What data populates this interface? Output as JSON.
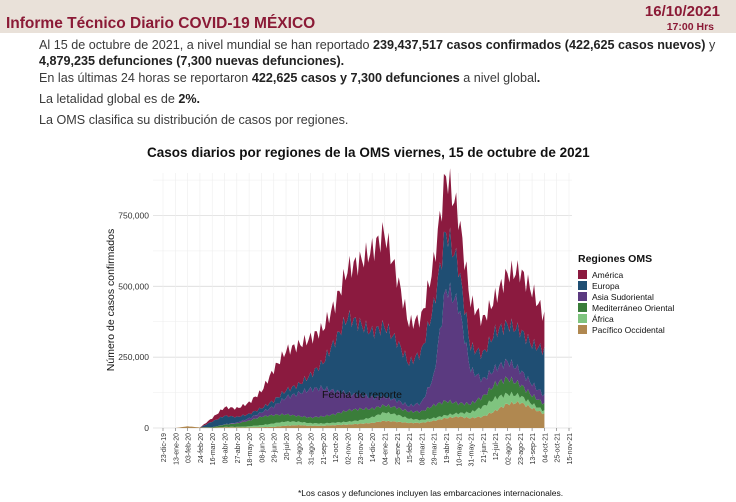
{
  "header": {
    "title": "Informe Técnico Diario COVID-19 MÉXICO",
    "date": "16/10/2021",
    "time": "17:00 Hrs"
  },
  "paragraphs": {
    "p1_a": "Al 15 de octubre de 2021, a nivel mundial se han reportado ",
    "p1_b": "239,437,517 casos confirmados (422,625 casos nuevos)",
    "p1_c": " y ",
    "p1_d": "4,879,235 defunciones (7,300 nuevas defunciones).",
    "p2_a": "En las últimas 24 horas se reportaron ",
    "p2_b": "422,625 casos y 7,300 defunciones",
    "p2_c": " a nivel global",
    "p2_d": ".",
    "p3_a": "La letalidad global es de ",
    "p3_b": "2%.",
    "p4": "La OMS clasifica su distribución de casos por regiones."
  },
  "footnote": "*Los casos y defunciones incluyen las embarcaciones internacionales.",
  "colors": {
    "america": "#8b1a3f",
    "europa": "#1f4e73",
    "asia": "#5b3a80",
    "mediterraneo": "#3a7d3a",
    "africa": "#7fc47f",
    "pacifico": "#b08850",
    "header_bg": "#e9e1d9",
    "brand": "#8b1a36"
  },
  "chart_data": {
    "type": "area",
    "title": "Casos diarios por regiones de la OMS viernes, 15 de octubre de 2021",
    "xlabel": "Fecha de reporte",
    "ylabel": "Número de casos confirmados",
    "ylim": [
      0,
      900000
    ],
    "yticks": [
      0,
      250000,
      500000,
      750000
    ],
    "ytick_labels": [
      "0",
      "250,000",
      "500,000",
      "750,000"
    ],
    "xticks": [
      "23-dic-19",
      "13-ene-20",
      "03-feb-20",
      "24-feb-20",
      "16-mar-20",
      "06-abr-20",
      "27-abr-20",
      "18-may-20",
      "08-jun-20",
      "29-jun-20",
      "20-jul-20",
      "10-ago-20",
      "31-ago-20",
      "21-sep-20",
      "12-oct-20",
      "02-nov-20",
      "23-nov-20",
      "14-dic-20",
      "04-ene-21",
      "25-ene-21",
      "15-feb-21",
      "08-mar-21",
      "29-mar-21",
      "19-abr-21",
      "10-may-21",
      "31-may-21",
      "21-jun-21",
      "12-jul-21",
      "02-ago-21",
      "23-ago-21",
      "13-sep-21",
      "04-oct-21",
      "25-oct-21",
      "15-nov-21"
    ],
    "grid": true,
    "legend_title": "Regiones OMS",
    "legend_position": "right",
    "x": [
      "23-dic-19",
      "13-ene-20",
      "03-feb-20",
      "24-feb-20",
      "16-mar-20",
      "06-abr-20",
      "27-abr-20",
      "18-may-20",
      "08-jun-20",
      "29-jun-20",
      "20-jul-20",
      "10-ago-20",
      "31-ago-20",
      "21-sep-20",
      "12-oct-20",
      "02-nov-20",
      "23-nov-20",
      "14-dic-20",
      "04-ene-21",
      "25-ene-21",
      "15-feb-21",
      "08-mar-21",
      "29-mar-21",
      "19-abr-21",
      "10-may-21",
      "31-may-21",
      "21-jun-21",
      "12-jul-21",
      "02-ago-21",
      "23-ago-21",
      "13-sep-21",
      "04-oct-21"
    ],
    "series": [
      {
        "name": "América",
        "values": [
          0,
          0,
          0,
          0,
          12000,
          30000,
          30000,
          40000,
          60000,
          110000,
          140000,
          140000,
          130000,
          120000,
          130000,
          170000,
          220000,
          290000,
          330000,
          230000,
          140000,
          120000,
          150000,
          200000,
          180000,
          160000,
          120000,
          120000,
          180000,
          210000,
          190000,
          120000
        ]
      },
      {
        "name": "Europa",
        "values": [
          0,
          0,
          0,
          0,
          20000,
          30000,
          20000,
          15000,
          15000,
          20000,
          25000,
          30000,
          50000,
          90000,
          180000,
          270000,
          250000,
          230000,
          250000,
          210000,
          150000,
          180000,
          250000,
          200000,
          140000,
          80000,
          90000,
          130000,
          130000,
          140000,
          140000,
          160000
        ]
      },
      {
        "name": "Asia Sudoriental",
        "values": [
          0,
          0,
          0,
          0,
          0,
          1000,
          3000,
          8000,
          15000,
          30000,
          60000,
          80000,
          100000,
          100000,
          80000,
          60000,
          50000,
          40000,
          30000,
          25000,
          20000,
          30000,
          100000,
          400000,
          350000,
          120000,
          60000,
          55000,
          60000,
          50000,
          40000,
          30000
        ]
      },
      {
        "name": "Mediterráneo Oriental",
        "values": [
          0,
          0,
          0,
          0,
          2000,
          8000,
          12000,
          20000,
          30000,
          30000,
          25000,
          20000,
          20000,
          25000,
          30000,
          40000,
          40000,
          30000,
          25000,
          25000,
          25000,
          30000,
          45000,
          50000,
          35000,
          30000,
          35000,
          50000,
          55000,
          40000,
          30000,
          25000
        ]
      },
      {
        "name": "África",
        "values": [
          0,
          0,
          0,
          0,
          0,
          1000,
          2000,
          4000,
          7000,
          12000,
          15000,
          12000,
          9000,
          8000,
          9000,
          10000,
          12000,
          20000,
          30000,
          25000,
          15000,
          10000,
          10000,
          10000,
          12000,
          20000,
          35000,
          45000,
          35000,
          25000,
          15000,
          10000
        ]
      },
      {
        "name": "Pacífico Occidental",
        "values": [
          0,
          0,
          6000,
          2000,
          1000,
          3000,
          2000,
          2000,
          3000,
          4000,
          8000,
          10000,
          8000,
          8000,
          10000,
          12000,
          15000,
          18000,
          25000,
          22000,
          18000,
          18000,
          25000,
          35000,
          40000,
          35000,
          40000,
          60000,
          85000,
          90000,
          70000,
          50000
        ]
      }
    ]
  }
}
